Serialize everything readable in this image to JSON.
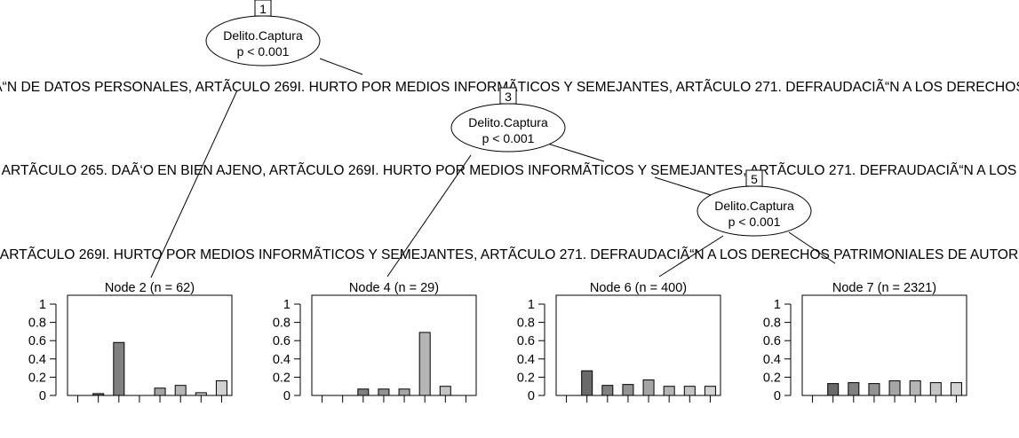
{
  "tree": {
    "inner_nodes": [
      {
        "id": "1",
        "variable": "Delito.Captura",
        "pvalue": "p < 0.001"
      },
      {
        "id": "3",
        "variable": "Delito.Captura",
        "pvalue": "p < 0.001"
      },
      {
        "id": "5",
        "variable": "Delito.Captura",
        "pvalue": "p < 0.001"
      }
    ],
    "split_labels": [
      "Ã“N DE DATOS PERSONALES, ARTÃCULO 269I. HURTO POR MEDIOS INFORMÃTICOS Y SEMEJANTES, ARTÃCULO 271. DEFRAUDACIÃ“N A LOS DERECHOS",
      "ARTÃCULO 265. DAÃ‘O EN BIEN AJENO, ARTÃCULO 269I. HURTO POR MEDIOS INFORMÃTICOS Y SEMEJANTES, ARTÃCULO 271. DEFRAUDACIÃ“N A LOS",
      "ARTÃCULO 269I. HURTO POR MEDIOS INFORMÃTICOS Y SEMEJANTES, ARTÃCULO 271. DEFRAUDACIÃ“N A LOS DERECHOS PATRIMONIALES DE AUTOR"
    ],
    "terminal_nodes": [
      {
        "title": "Node 2 (n = 62)",
        "values": [
          0,
          0.02,
          0.58,
          0,
          0.08,
          0.11,
          0.03,
          0.16
        ]
      },
      {
        "title": "Node 4 (n = 29)",
        "values": [
          0,
          0,
          0.07,
          0.07,
          0.07,
          0.69,
          0.1,
          0
        ]
      },
      {
        "title": "Node 6 (n = 400)",
        "values": [
          0,
          0.27,
          0.11,
          0.12,
          0.17,
          0.1,
          0.1,
          0.1
        ]
      },
      {
        "title": "Node 7 (n = 2321)",
        "values": [
          0,
          0.13,
          0.14,
          0.13,
          0.16,
          0.16,
          0.14,
          0.14
        ]
      }
    ],
    "y_ticks": [
      "0",
      "0.2",
      "0.4",
      "0.6",
      "0.8",
      "1"
    ],
    "bar_colors": [
      "#4d4d4d",
      "#6a6a6a",
      "#808080",
      "#939393",
      "#a5a5a5",
      "#b5b5b5",
      "#c4c4c4",
      "#d2d2d2"
    ]
  }
}
